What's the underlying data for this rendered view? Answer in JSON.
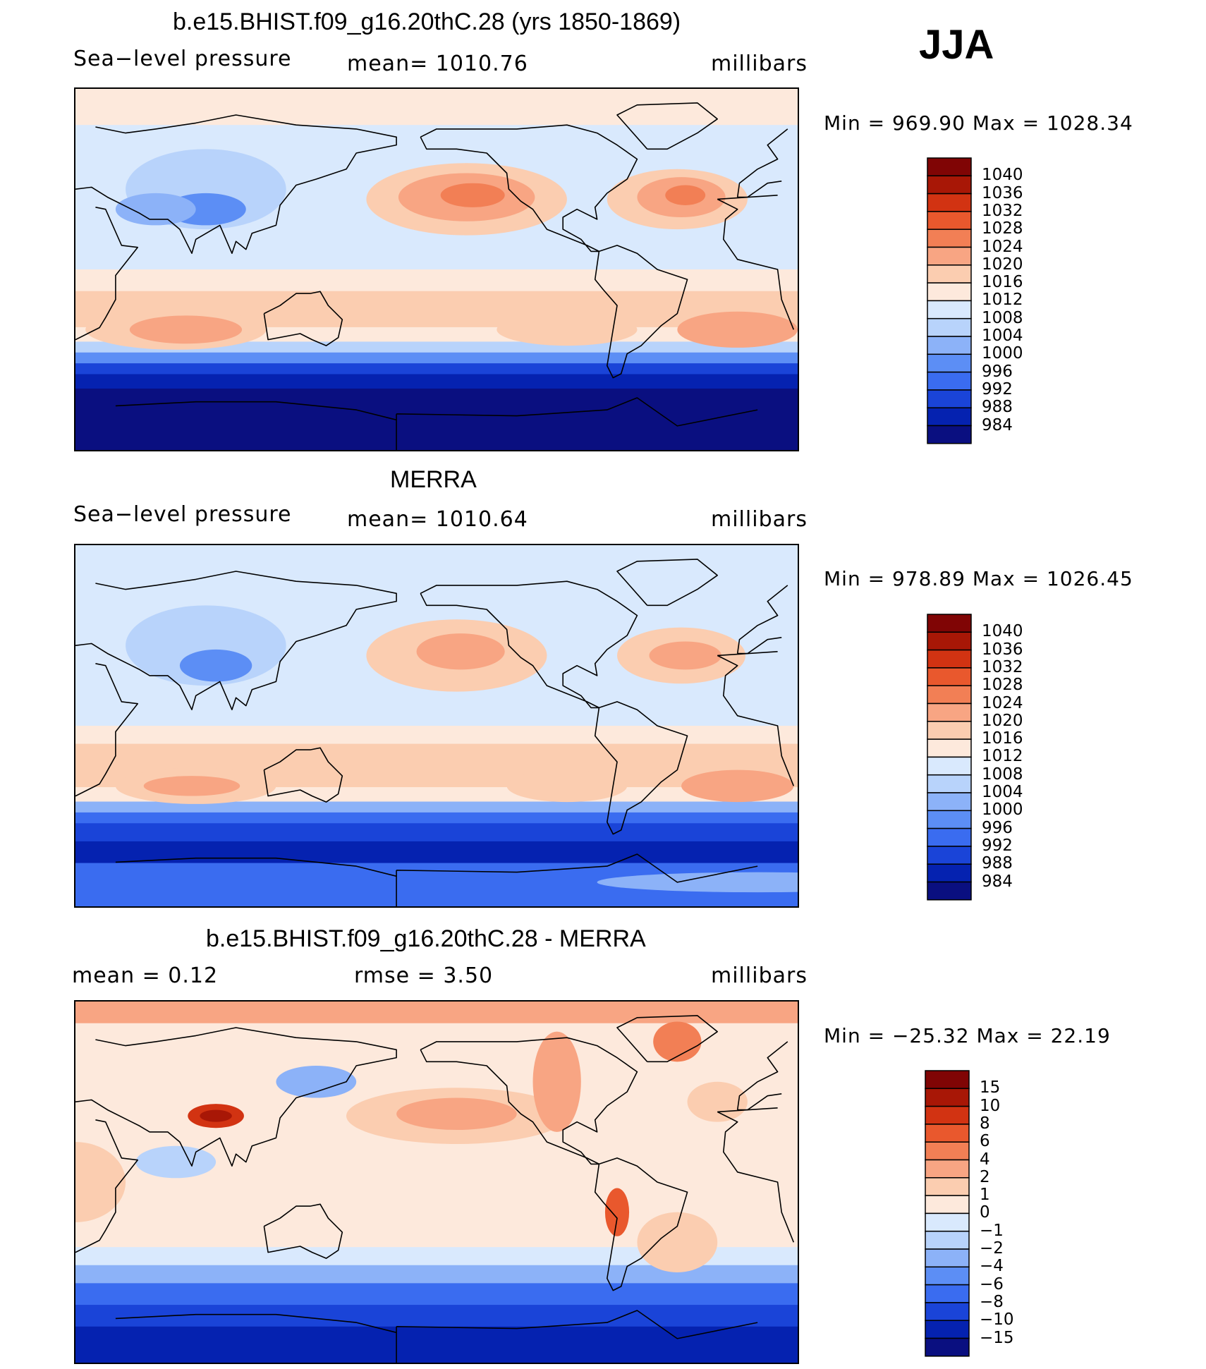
{
  "season": "JJA",
  "colors": {
    "abs": [
      "#0a0f80",
      "#0522b0",
      "#1a44d8",
      "#3a6cf0",
      "#5c8ef5",
      "#8cb2f8",
      "#b8d3fb",
      "#d9e9fd",
      "#fde9dc",
      "#fbcdb0",
      "#f8a583",
      "#f27f55",
      "#e9582d",
      "#d23312",
      "#a81706",
      "#800505"
    ],
    "diff": [
      "#0a0f80",
      "#0522b0",
      "#1a44d8",
      "#3a6cf0",
      "#5c8ef5",
      "#8cb2f8",
      "#b8d3fb",
      "#d9e9fd",
      "#fde9dc",
      "#fbcdb0",
      "#f8a583",
      "#f27f55",
      "#e9582d",
      "#d23312",
      "#a81706",
      "#800505"
    ]
  },
  "panels": [
    {
      "title": "b.e15.BHIST.f09_g16.20thC.28 (yrs 1850-1869)",
      "left": "Sea−level pressure",
      "center": "mean=  1010.76",
      "right": "millibars",
      "minmax": "Min  =  969.90  Max  =  1028.34",
      "kind": "abs"
    },
    {
      "title": "MERRA",
      "left": "Sea−level pressure",
      "center": "mean=  1010.64",
      "right": "millibars",
      "minmax": "Min  =  978.89  Max  =  1026.45",
      "kind": "abs"
    },
    {
      "title": "b.e15.BHIST.f09_g16.20thC.28 - MERRA",
      "left": "mean  =     0.12",
      "center": "rmse  =     3.50",
      "right": "millibars",
      "minmax": "Min  =  −25.32  Max  =    22.19",
      "kind": "diff"
    }
  ],
  "chart_data": [
    {
      "type": "heatmap",
      "title": "b.e15.BHIST.f09_g16.20thC.28 (yrs 1850-1869)",
      "variable": "Sea-level pressure",
      "units": "millibars",
      "mean": 1010.76,
      "min": 969.9,
      "max": 1028.34,
      "levels": [
        984,
        988,
        992,
        996,
        1000,
        1004,
        1008,
        1012,
        1016,
        1020,
        1024,
        1028,
        1032,
        1036,
        1040
      ]
    },
    {
      "type": "heatmap",
      "title": "MERRA",
      "variable": "Sea-level pressure",
      "units": "millibars",
      "mean": 1010.64,
      "min": 978.89,
      "max": 1026.45,
      "levels": [
        984,
        988,
        992,
        996,
        1000,
        1004,
        1008,
        1012,
        1016,
        1020,
        1024,
        1028,
        1032,
        1036,
        1040
      ]
    },
    {
      "type": "heatmap",
      "title": "b.e15.BHIST.f09_g16.20thC.28 - MERRA",
      "variable": "Sea-level pressure difference",
      "units": "millibars",
      "mean": 0.12,
      "rmse": 3.5,
      "min": -25.32,
      "max": 22.19,
      "levels": [
        -15,
        -10,
        -8,
        -6,
        -4,
        -2,
        -1,
        0,
        1,
        2,
        4,
        6,
        8,
        10,
        15
      ]
    }
  ],
  "tick_labels": {
    "abs": [
      "1040",
      "1036",
      "1032",
      "1028",
      "1024",
      "1020",
      "1016",
      "1012",
      "1008",
      "1004",
      "1000",
      "996",
      "992",
      "988",
      "984"
    ],
    "diff": [
      "15",
      "10",
      "8",
      "6",
      "4",
      "2",
      "1",
      "0",
      "−1",
      "−2",
      "−4",
      "−6",
      "−8",
      "−10",
      "−15"
    ]
  }
}
